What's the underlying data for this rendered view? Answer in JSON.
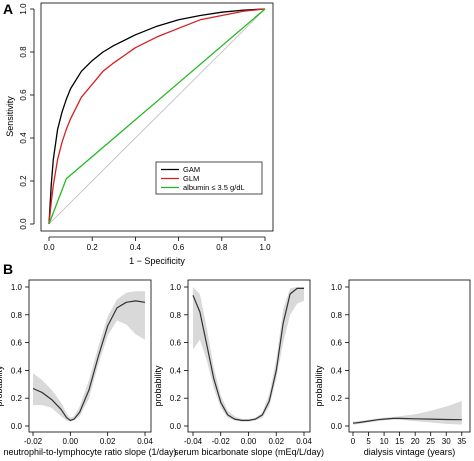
{
  "panels": {
    "a": "A",
    "b": "B"
  },
  "chart_data": [
    {
      "type": "line",
      "panel": "A",
      "xlabel": "1 − Specificity",
      "ylabel": "Sensitivity",
      "xlim": [
        0,
        1
      ],
      "ylim": [
        0,
        1
      ],
      "xticks": [
        "0.0",
        "0.2",
        "0.4",
        "0.6",
        "0.8",
        "1.0"
      ],
      "yticks": [
        "0.0",
        "0.2",
        "0.4",
        "0.6",
        "0.8",
        "1.0"
      ],
      "legend_position": "bottom-right",
      "series": [
        {
          "name": "GAM",
          "color": "#000000",
          "x": [
            0,
            0.01,
            0.02,
            0.04,
            0.06,
            0.08,
            0.1,
            0.15,
            0.2,
            0.25,
            0.3,
            0.4,
            0.5,
            0.6,
            0.7,
            0.8,
            0.9,
            1.0
          ],
          "y": [
            0,
            0.18,
            0.3,
            0.44,
            0.52,
            0.58,
            0.63,
            0.71,
            0.76,
            0.8,
            0.83,
            0.88,
            0.92,
            0.95,
            0.97,
            0.985,
            0.995,
            1.0
          ]
        },
        {
          "name": "GLM",
          "color": "#d62020",
          "x": [
            0,
            0.01,
            0.02,
            0.04,
            0.06,
            0.08,
            0.1,
            0.15,
            0.2,
            0.25,
            0.3,
            0.4,
            0.5,
            0.6,
            0.7,
            0.8,
            0.9,
            1.0
          ],
          "y": [
            0,
            0.1,
            0.18,
            0.3,
            0.38,
            0.44,
            0.49,
            0.59,
            0.65,
            0.71,
            0.75,
            0.82,
            0.87,
            0.91,
            0.95,
            0.97,
            0.99,
            1.0
          ]
        },
        {
          "name": "albumin ≤ 3.5 g/dL",
          "color": "#22b822",
          "x": [
            0,
            0.08,
            1.0
          ],
          "y": [
            0,
            0.21,
            1.0
          ]
        }
      ],
      "reference_line": {
        "x": [
          0,
          1
        ],
        "y": [
          0,
          1
        ],
        "color": "#bbbbbb"
      }
    },
    {
      "type": "line",
      "panel": "B",
      "xlabel": "neutrophil-to-lymphocyte ratio slope (1/day)",
      "ylabel": "probability",
      "xlim": [
        -0.02,
        0.04
      ],
      "ylim": [
        0,
        1
      ],
      "xticks": [
        "-0.02",
        "0.00",
        "0.02",
        "0.04"
      ],
      "yticks": [
        "0.0",
        "0.2",
        "0.4",
        "0.6",
        "0.8",
        "1.0"
      ],
      "x": [
        -0.02,
        -0.015,
        -0.01,
        -0.005,
        -0.002,
        0.0,
        0.002,
        0.005,
        0.01,
        0.015,
        0.02,
        0.025,
        0.03,
        0.035,
        0.04
      ],
      "y": [
        0.27,
        0.24,
        0.19,
        0.12,
        0.06,
        0.04,
        0.05,
        0.1,
        0.26,
        0.5,
        0.72,
        0.85,
        0.89,
        0.9,
        0.89
      ],
      "ci_lower": [
        0.15,
        0.15,
        0.13,
        0.07,
        0.04,
        0.03,
        0.04,
        0.07,
        0.2,
        0.44,
        0.65,
        0.76,
        0.73,
        0.66,
        0.62
      ],
      "ci_upper": [
        0.38,
        0.33,
        0.26,
        0.17,
        0.09,
        0.06,
        0.07,
        0.14,
        0.33,
        0.57,
        0.79,
        0.91,
        0.96,
        0.97,
        0.97
      ]
    },
    {
      "type": "line",
      "panel": "B",
      "xlabel": "serum bicarbonate slope (mEq/L/day)",
      "ylabel": "probability",
      "xlim": [
        -0.04,
        0.04
      ],
      "ylim": [
        0,
        1
      ],
      "xticks": [
        "-0.04",
        "-0.02",
        "0.00",
        "0.02",
        "0.04"
      ],
      "yticks": [
        "0.0",
        "0.2",
        "0.4",
        "0.6",
        "0.8",
        "1.0"
      ],
      "x": [
        -0.04,
        -0.035,
        -0.03,
        -0.025,
        -0.02,
        -0.015,
        -0.01,
        -0.005,
        0.0,
        0.005,
        0.01,
        0.015,
        0.02,
        0.025,
        0.03,
        0.035,
        0.04
      ],
      "y": [
        0.94,
        0.82,
        0.58,
        0.34,
        0.17,
        0.08,
        0.05,
        0.04,
        0.04,
        0.05,
        0.08,
        0.18,
        0.4,
        0.74,
        0.95,
        0.99,
        0.99
      ],
      "ci_lower": [
        0.55,
        0.62,
        0.47,
        0.27,
        0.13,
        0.06,
        0.04,
        0.03,
        0.03,
        0.04,
        0.06,
        0.14,
        0.34,
        0.6,
        0.8,
        0.88,
        0.9
      ],
      "ci_upper": [
        1.0,
        0.95,
        0.7,
        0.42,
        0.22,
        0.11,
        0.07,
        0.05,
        0.05,
        0.06,
        0.1,
        0.23,
        0.48,
        0.84,
        0.99,
        1.0,
        1.0
      ]
    },
    {
      "type": "line",
      "panel": "B",
      "xlabel": "dialysis vintage (years)",
      "ylabel": "probability",
      "xlim": [
        0,
        37
      ],
      "ylim": [
        0,
        1
      ],
      "xticks": [
        "0",
        "5",
        "10",
        "15",
        "20",
        "25",
        "30",
        "35"
      ],
      "yticks": [
        "0.0",
        "0.2",
        "0.4",
        "0.6",
        "0.8",
        "1.0"
      ],
      "x": [
        0,
        2,
        5,
        8,
        10,
        13,
        15,
        20,
        25,
        30,
        35
      ],
      "y": [
        0.02,
        0.025,
        0.035,
        0.045,
        0.05,
        0.055,
        0.055,
        0.052,
        0.05,
        0.047,
        0.045
      ],
      "ci_lower": [
        0.01,
        0.015,
        0.025,
        0.035,
        0.04,
        0.045,
        0.045,
        0.035,
        0.025,
        0.015,
        0.01
      ],
      "ci_upper": [
        0.03,
        0.035,
        0.045,
        0.055,
        0.06,
        0.065,
        0.07,
        0.085,
        0.11,
        0.14,
        0.18
      ]
    }
  ]
}
